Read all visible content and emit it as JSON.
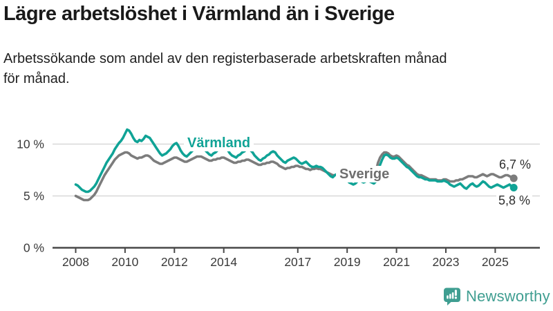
{
  "header": {
    "title": "Lägre arbetslöshet i Värmland än i Sverige",
    "subtitle_line1": "Arbetssökande som andel av den registerbaserade arbetskraften månad",
    "subtitle_line2": "för månad."
  },
  "chart_data": {
    "type": "line",
    "title": "Lägre arbetslöshet i Värmland än i Sverige",
    "x_start": "2008-01",
    "x_end": "2025-10",
    "frequency": "monthly",
    "ylim": [
      0,
      12
    ],
    "grid": true,
    "grid_color": "#d8d8d8",
    "axis_color": "#484848",
    "tick_text_color": "#3a3a3a",
    "yticks": [
      {
        "value": 0,
        "label": "0 %"
      },
      {
        "value": 5,
        "label": "5 %"
      },
      {
        "value": 10,
        "label": "10 %"
      }
    ],
    "xticks": [
      {
        "year": 2008,
        "label": "2008"
      },
      {
        "year": 2010,
        "label": "2010"
      },
      {
        "year": 2012,
        "label": "2012"
      },
      {
        "year": 2014,
        "label": "2014"
      },
      {
        "year": 2017,
        "label": "2017"
      },
      {
        "year": 2019,
        "label": "2019"
      },
      {
        "year": 2021,
        "label": "2021"
      },
      {
        "year": 2023,
        "label": "2023"
      },
      {
        "year": 2025,
        "label": "2025"
      }
    ],
    "series": [
      {
        "name": "Värmland",
        "color": "#10a396",
        "label_color": "#10a396",
        "last_value": 5.8,
        "values": [
          6.1,
          6.0,
          5.8,
          5.6,
          5.5,
          5.4,
          5.4,
          5.5,
          5.7,
          5.9,
          6.2,
          6.6,
          7.0,
          7.4,
          7.8,
          8.2,
          8.5,
          8.8,
          9.1,
          9.5,
          9.8,
          10.1,
          10.3,
          10.6,
          11.0,
          11.4,
          11.3,
          11.0,
          10.6,
          10.3,
          10.2,
          10.4,
          10.3,
          10.5,
          10.8,
          10.7,
          10.6,
          10.3,
          10.0,
          9.7,
          9.4,
          9.1,
          8.9,
          9.0,
          9.1,
          9.3,
          9.5,
          9.8,
          10.0,
          10.1,
          9.8,
          9.4,
          9.1,
          8.9,
          8.8,
          9.0,
          9.2,
          9.4,
          9.7,
          9.9,
          10.0,
          9.9,
          9.7,
          9.4,
          9.2,
          9.0,
          8.9,
          9.1,
          9.2,
          9.4,
          9.5,
          9.7,
          9.7,
          9.6,
          9.4,
          9.1,
          8.9,
          8.8,
          8.7,
          8.9,
          9.0,
          9.2,
          9.3,
          9.5,
          9.5,
          9.4,
          9.2,
          8.9,
          8.7,
          8.5,
          8.4,
          8.6,
          8.7,
          8.9,
          9.0,
          9.2,
          9.3,
          9.2,
          8.9,
          8.7,
          8.5,
          8.3,
          8.2,
          8.4,
          8.5,
          8.6,
          8.7,
          8.6,
          8.4,
          8.2,
          8.1,
          8.2,
          8.3,
          8.1,
          7.9,
          7.8,
          7.8,
          7.9,
          7.8,
          7.8,
          7.7,
          7.5,
          7.3,
          7.1,
          6.9,
          6.8,
          7.0,
          7.1,
          6.9,
          6.8,
          6.7,
          6.6,
          6.5,
          6.3,
          6.2,
          6.1,
          6.2,
          6.4,
          6.5,
          6.4,
          6.3,
          6.4,
          6.5,
          6.4,
          6.3,
          6.2,
          6.4,
          7.3,
          8.0,
          8.5,
          8.9,
          9.0,
          8.9,
          8.7,
          8.6,
          8.6,
          8.7,
          8.6,
          8.4,
          8.2,
          8.0,
          7.8,
          7.7,
          7.5,
          7.3,
          7.1,
          6.9,
          6.8,
          6.8,
          6.7,
          6.6,
          6.6,
          6.5,
          6.5,
          6.5,
          6.5,
          6.4,
          6.4,
          6.4,
          6.5,
          6.4,
          6.3,
          6.1,
          6.0,
          5.9,
          6.0,
          6.1,
          6.2,
          6.0,
          5.8,
          5.7,
          5.9,
          6.1,
          6.2,
          6.0,
          5.9,
          6.0,
          6.2,
          6.4,
          6.3,
          6.1,
          5.9,
          5.8,
          5.9,
          6.0,
          6.1,
          6.0,
          5.9,
          5.8,
          5.9,
          6.0,
          6.1,
          5.9,
          5.8
        ]
      },
      {
        "name": "Sverige",
        "color": "#7c7c7c",
        "label_color": "#6e6e6e",
        "last_value": 6.7,
        "values": [
          5.0,
          4.9,
          4.8,
          4.7,
          4.6,
          4.6,
          4.6,
          4.7,
          4.9,
          5.1,
          5.4,
          5.8,
          6.2,
          6.6,
          7.0,
          7.3,
          7.6,
          7.9,
          8.2,
          8.5,
          8.7,
          8.9,
          9.0,
          9.1,
          9.2,
          9.2,
          9.1,
          8.9,
          8.8,
          8.7,
          8.6,
          8.7,
          8.7,
          8.8,
          8.9,
          8.9,
          8.8,
          8.6,
          8.4,
          8.3,
          8.2,
          8.1,
          8.1,
          8.2,
          8.3,
          8.4,
          8.5,
          8.6,
          8.7,
          8.7,
          8.6,
          8.5,
          8.4,
          8.3,
          8.3,
          8.4,
          8.5,
          8.6,
          8.7,
          8.8,
          8.8,
          8.8,
          8.7,
          8.6,
          8.5,
          8.4,
          8.4,
          8.5,
          8.5,
          8.6,
          8.6,
          8.7,
          8.7,
          8.6,
          8.5,
          8.4,
          8.3,
          8.2,
          8.2,
          8.3,
          8.3,
          8.4,
          8.4,
          8.5,
          8.5,
          8.4,
          8.3,
          8.2,
          8.1,
          8.0,
          8.0,
          8.1,
          8.1,
          8.2,
          8.2,
          8.3,
          8.3,
          8.2,
          8.1,
          7.9,
          7.8,
          7.7,
          7.6,
          7.7,
          7.7,
          7.8,
          7.8,
          7.9,
          7.9,
          7.8,
          7.8,
          7.7,
          7.6,
          7.6,
          7.5,
          7.6,
          7.6,
          7.7,
          7.6,
          7.6,
          7.5,
          7.4,
          7.3,
          7.2,
          7.1,
          7.0,
          7.0,
          7.1,
          7.0,
          7.0,
          7.0,
          7.0,
          7.0,
          6.9,
          6.9,
          6.8,
          6.8,
          6.8,
          6.8,
          6.9,
          6.9,
          7.0,
          7.0,
          7.1,
          7.2,
          7.2,
          7.4,
          8.2,
          8.7,
          9.0,
          9.2,
          9.2,
          9.1,
          8.9,
          8.8,
          8.8,
          8.9,
          8.8,
          8.6,
          8.4,
          8.2,
          8.0,
          7.9,
          7.7,
          7.5,
          7.3,
          7.1,
          7.0,
          7.0,
          6.9,
          6.8,
          6.7,
          6.6,
          6.6,
          6.6,
          6.6,
          6.5,
          6.5,
          6.5,
          6.6,
          6.6,
          6.5,
          6.4,
          6.4,
          6.4,
          6.5,
          6.5,
          6.6,
          6.6,
          6.7,
          6.8,
          6.9,
          6.9,
          6.9,
          6.8,
          6.8,
          6.9,
          7.0,
          7.1,
          7.0,
          6.9,
          7.0,
          7.1,
          7.1,
          7.0,
          6.9,
          6.8,
          6.8,
          6.9,
          7.0,
          7.0,
          6.9,
          6.8,
          6.7
        ]
      }
    ],
    "end_labels": {
      "sverige": "6,7 %",
      "varmland": "5,8 %"
    },
    "legend_position": "inline-labels"
  },
  "footer": {
    "brand_name": "Newsworthy",
    "brand_color": "#3f9e91"
  }
}
